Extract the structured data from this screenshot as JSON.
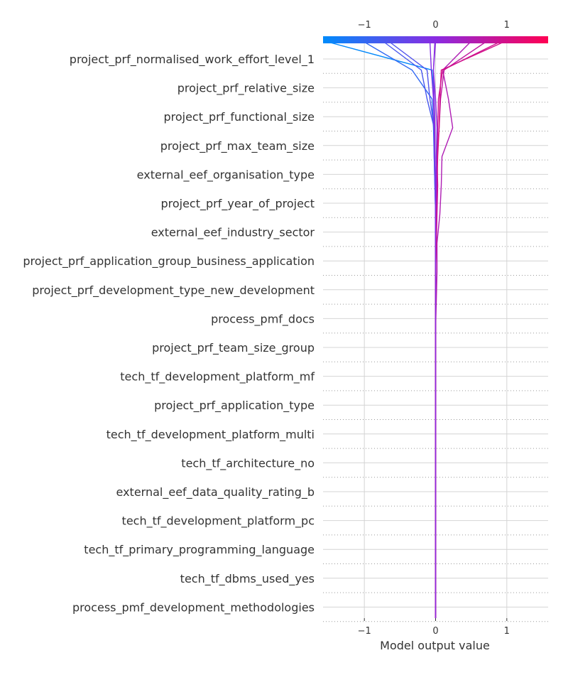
{
  "chart_data": {
    "type": "decision",
    "xlabel": "Model output value",
    "xlim": [
      -1.58,
      1.58
    ],
    "x_ticks": [
      -1,
      0,
      1
    ],
    "x_tick_labels": [
      "−1",
      "0",
      "1"
    ],
    "base_value": 0,
    "colormap": [
      "#008bfb",
      "#8a2be2",
      "#ff0052"
    ],
    "grid": true,
    "features": [
      "project_prf_normalised_work_effort_level_1",
      "project_prf_relative_size",
      "project_prf_functional_size",
      "project_prf_max_team_size",
      "external_eef_organisation_type",
      "project_prf_year_of_project",
      "external_eef_industry_sector",
      "project_prf_application_group_business_application",
      "project_prf_development_type_new_development",
      "process_pmf_docs",
      "project_prf_team_size_group",
      "tech_tf_development_platform_mf",
      "project_prf_application_type",
      "tech_tf_development_platform_multi",
      "tech_tf_architecture_no",
      "external_eef_data_quality_rating_b",
      "tech_tf_development_platform_pc",
      "tech_tf_primary_programming_language",
      "tech_tf_dbms_used_yes",
      "process_pmf_development_methodologies"
    ],
    "series": [
      {
        "values": [
          0.0,
          0.0,
          0.0,
          0.0,
          0.0,
          0.0,
          0.0,
          0.0,
          0.0,
          0.0,
          0.0,
          0.0,
          0.0,
          0.0,
          0.0,
          0.0,
          -0.01,
          -0.01,
          -0.02,
          -0.05,
          -1.55
        ]
      },
      {
        "values": [
          0.0,
          0.0,
          0.0,
          0.0,
          0.0,
          0.0,
          0.0,
          0.0,
          0.0,
          0.0,
          0.0,
          0.0,
          0.0,
          0.0,
          0.0,
          -0.01,
          -0.02,
          -0.03,
          -0.05,
          -0.33,
          -1.02
        ]
      },
      {
        "values": [
          0.0,
          0.0,
          0.0,
          0.0,
          0.0,
          0.0,
          0.0,
          0.0,
          0.0,
          0.0,
          0.0,
          0.0,
          0.0,
          0.0,
          0.0,
          -0.01,
          -0.02,
          -0.02,
          -0.12,
          -0.2,
          -0.74
        ]
      },
      {
        "values": [
          0.0,
          0.0,
          0.0,
          0.0,
          0.0,
          0.0,
          0.0,
          0.0,
          0.0,
          0.0,
          0.0,
          0.0,
          0.0,
          0.0,
          0.0,
          0.0,
          -0.01,
          -0.02,
          -0.08,
          -0.12,
          -0.66
        ]
      },
      {
        "values": [
          0.0,
          0.0,
          0.0,
          0.0,
          0.0,
          0.0,
          0.0,
          0.0,
          0.0,
          0.0,
          0.0,
          0.0,
          0.0,
          0.0,
          0.0,
          0.0,
          -0.01,
          -0.02,
          -0.03,
          -0.06,
          -0.08
        ]
      },
      {
        "values": [
          0.0,
          0.0,
          0.0,
          0.0,
          0.0,
          0.0,
          0.0,
          0.0,
          0.0,
          0.0,
          0.0,
          0.0,
          0.0,
          0.0,
          0.0,
          0.0,
          -0.01,
          -0.01,
          -0.02,
          -0.03,
          0.0
        ]
      },
      {
        "values": [
          0.0,
          0.0,
          0.0,
          0.0,
          0.0,
          0.0,
          0.0,
          0.0,
          0.0,
          0.0,
          0.0,
          0.01,
          0.02,
          0.02,
          0.06,
          0.08,
          0.09,
          0.24,
          0.18,
          0.1,
          0.5
        ]
      },
      {
        "values": [
          0.0,
          0.0,
          0.0,
          0.0,
          0.0,
          0.0,
          0.0,
          0.0,
          0.0,
          0.0,
          0.0,
          0.0,
          0.0,
          0.01,
          0.02,
          0.03,
          0.02,
          0.05,
          0.07,
          0.12,
          0.72
        ]
      },
      {
        "values": [
          0.0,
          0.0,
          0.0,
          0.0,
          0.0,
          0.0,
          0.0,
          0.0,
          0.0,
          0.0,
          0.0,
          0.0,
          0.0,
          0.01,
          0.01,
          0.02,
          0.03,
          0.05,
          0.06,
          0.08,
          0.98
        ]
      },
      {
        "values": [
          0.0,
          0.0,
          0.0,
          0.0,
          0.0,
          0.0,
          0.0,
          0.0,
          0.0,
          0.0,
          0.0,
          0.0,
          0.0,
          0.0,
          0.01,
          0.01,
          0.02,
          0.03,
          0.04,
          0.1,
          0.92
        ]
      },
      {
        "values": [
          0.0,
          0.0,
          0.0,
          0.0,
          0.0,
          0.0,
          0.0,
          0.0,
          0.0,
          0.0,
          0.0,
          0.0,
          0.0,
          0.0,
          0.0,
          0.01,
          0.01,
          0.02,
          0.0,
          -0.03,
          -0.01
        ]
      }
    ]
  }
}
